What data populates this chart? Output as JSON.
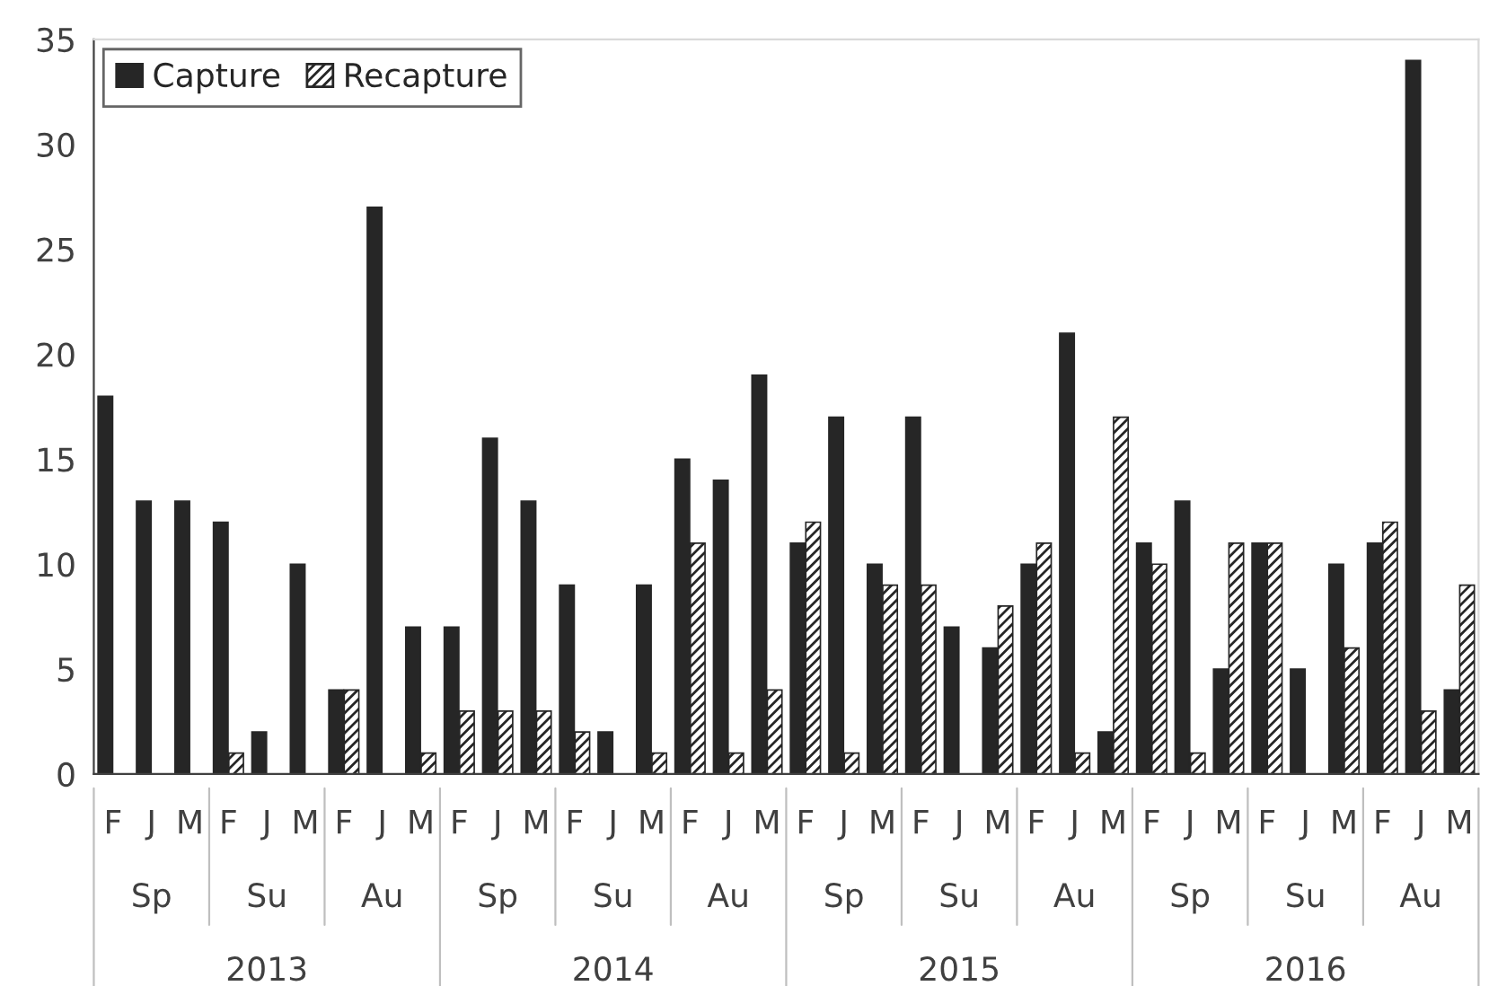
{
  "chart_data": {
    "type": "bar",
    "categories": [
      "F",
      "J",
      "M",
      "F",
      "J",
      "M",
      "F",
      "J",
      "M",
      "F",
      "J",
      "M",
      "F",
      "J",
      "M",
      "F",
      "J",
      "M",
      "F",
      "J",
      "M",
      "F",
      "J",
      "M",
      "F",
      "J",
      "M",
      "F",
      "J",
      "M",
      "F",
      "J",
      "M",
      "F",
      "J",
      "M"
    ],
    "series": [
      {
        "name": "Capture",
        "color": "#262626",
        "values": [
          18,
          13,
          13,
          12,
          2,
          10,
          4,
          27,
          7,
          7,
          16,
          13,
          9,
          2,
          9,
          15,
          14,
          19,
          11,
          17,
          10,
          17,
          7,
          6,
          10,
          21,
          2,
          11,
          13,
          5,
          11,
          5,
          10,
          11,
          34,
          4
        ]
      },
      {
        "name": "Recapture",
        "color": "#262626",
        "values": [
          0,
          0,
          0,
          1,
          0,
          0,
          4,
          0,
          1,
          3,
          3,
          3,
          2,
          0,
          1,
          11,
          1,
          4,
          12,
          1,
          9,
          9,
          0,
          8,
          11,
          1,
          17,
          10,
          1,
          11,
          11,
          0,
          6,
          12,
          3,
          9
        ]
      }
    ],
    "annotations": [
      "Sp",
      "Su",
      "Au",
      "Sp",
      "Su",
      "Au",
      "Sp",
      "Su",
      "Au",
      "Sp",
      "Su",
      "Au",
      "2013",
      "2014",
      "2015",
      "2016"
    ],
    "ylim": [
      0,
      35
    ],
    "yticks": [
      0,
      5,
      10,
      15,
      20,
      25,
      30,
      35
    ],
    "grid": false,
    "legend": "top left"
  }
}
